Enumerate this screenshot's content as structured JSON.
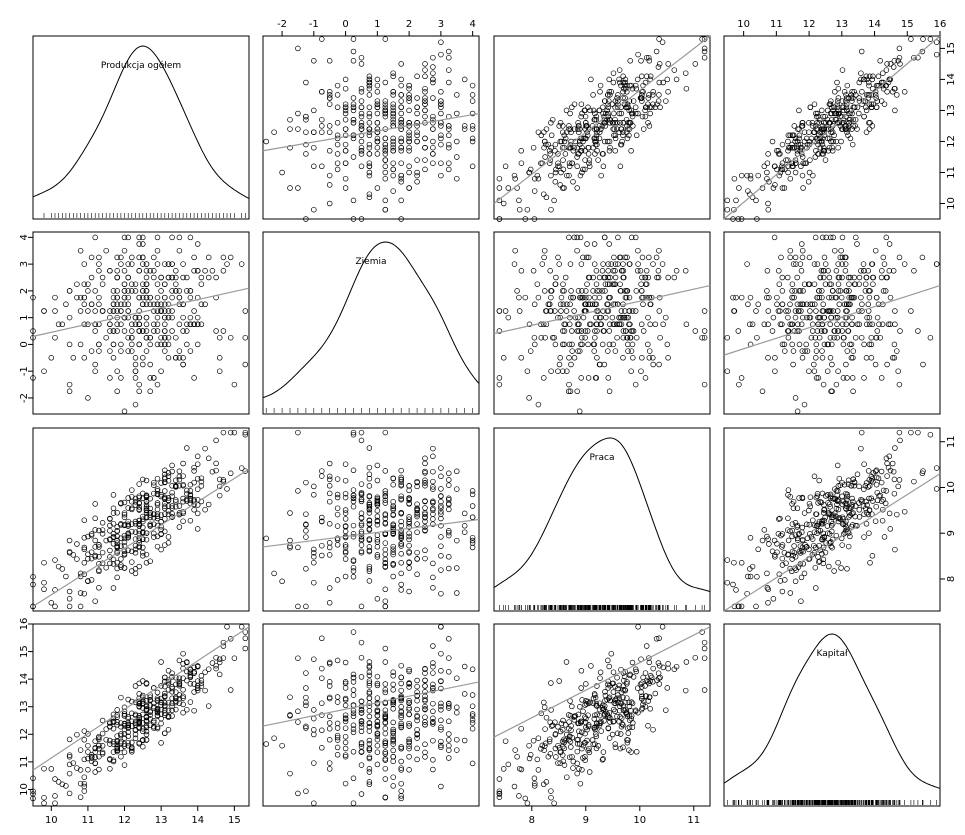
{
  "chart_data": {
    "type": "scatter",
    "variables": [
      "Produkcja ogółem",
      "Ziemia",
      "Praca",
      "Kapitał"
    ],
    "ranges": [
      [
        9.5,
        15.4
      ],
      [
        -2.6,
        4.2
      ],
      [
        7.3,
        11.3
      ],
      [
        9.4,
        16.0
      ]
    ],
    "ticks": {
      "bottom": [
        [
          10,
          11,
          12,
          13,
          14,
          15
        ],
        [],
        [
          8,
          9,
          10,
          11
        ],
        []
      ],
      "top": [
        [],
        [
          -2,
          -1,
          0,
          1,
          2,
          3,
          4
        ],
        [],
        [
          10,
          11,
          12,
          13,
          14,
          15,
          16
        ]
      ],
      "left": [
        [],
        [
          -2,
          -1,
          0,
          1,
          2,
          3,
          4
        ],
        [],
        [
          10,
          11,
          12,
          13,
          14,
          15,
          16
        ]
      ],
      "right": [
        [
          10,
          11,
          12,
          13,
          14,
          15
        ],
        [],
        [
          8,
          9,
          10,
          11
        ],
        []
      ]
    },
    "fit_lines": [
      {
        "row": 0,
        "col": 1,
        "x": [
          -2.6,
          4.2
        ],
        "y": [
          11.7,
          12.9
        ]
      },
      {
        "row": 0,
        "col": 2,
        "x": [
          7.3,
          11.3
        ],
        "y": [
          10.0,
          15.4
        ]
      },
      {
        "row": 0,
        "col": 3,
        "x": [
          9.4,
          16.0
        ],
        "y": [
          9.5,
          15.4
        ]
      },
      {
        "row": 1,
        "col": 0,
        "x": [
          9.5,
          15.4
        ],
        "y": [
          0.3,
          2.1
        ]
      },
      {
        "row": 1,
        "col": 2,
        "x": [
          7.3,
          11.3
        ],
        "y": [
          0.4,
          2.2
        ]
      },
      {
        "row": 1,
        "col": 3,
        "x": [
          9.4,
          16.0
        ],
        "y": [
          -0.4,
          2.2
        ]
      },
      {
        "row": 2,
        "col": 0,
        "x": [
          9.5,
          15.4
        ],
        "y": [
          7.4,
          10.4
        ]
      },
      {
        "row": 2,
        "col": 1,
        "x": [
          -2.6,
          4.2
        ],
        "y": [
          8.7,
          9.3
        ]
      },
      {
        "row": 2,
        "col": 3,
        "x": [
          9.4,
          16.0
        ],
        "y": [
          7.3,
          10.3
        ]
      },
      {
        "row": 3,
        "col": 0,
        "x": [
          9.5,
          15.4
        ],
        "y": [
          10.7,
          15.9
        ]
      },
      {
        "row": 3,
        "col": 1,
        "x": [
          -2.6,
          4.2
        ],
        "y": [
          12.3,
          13.9
        ]
      },
      {
        "row": 3,
        "col": 2,
        "x": [
          7.3,
          11.3
        ],
        "y": [
          11.9,
          15.9
        ]
      }
    ],
    "grid": false,
    "legend": "none"
  }
}
